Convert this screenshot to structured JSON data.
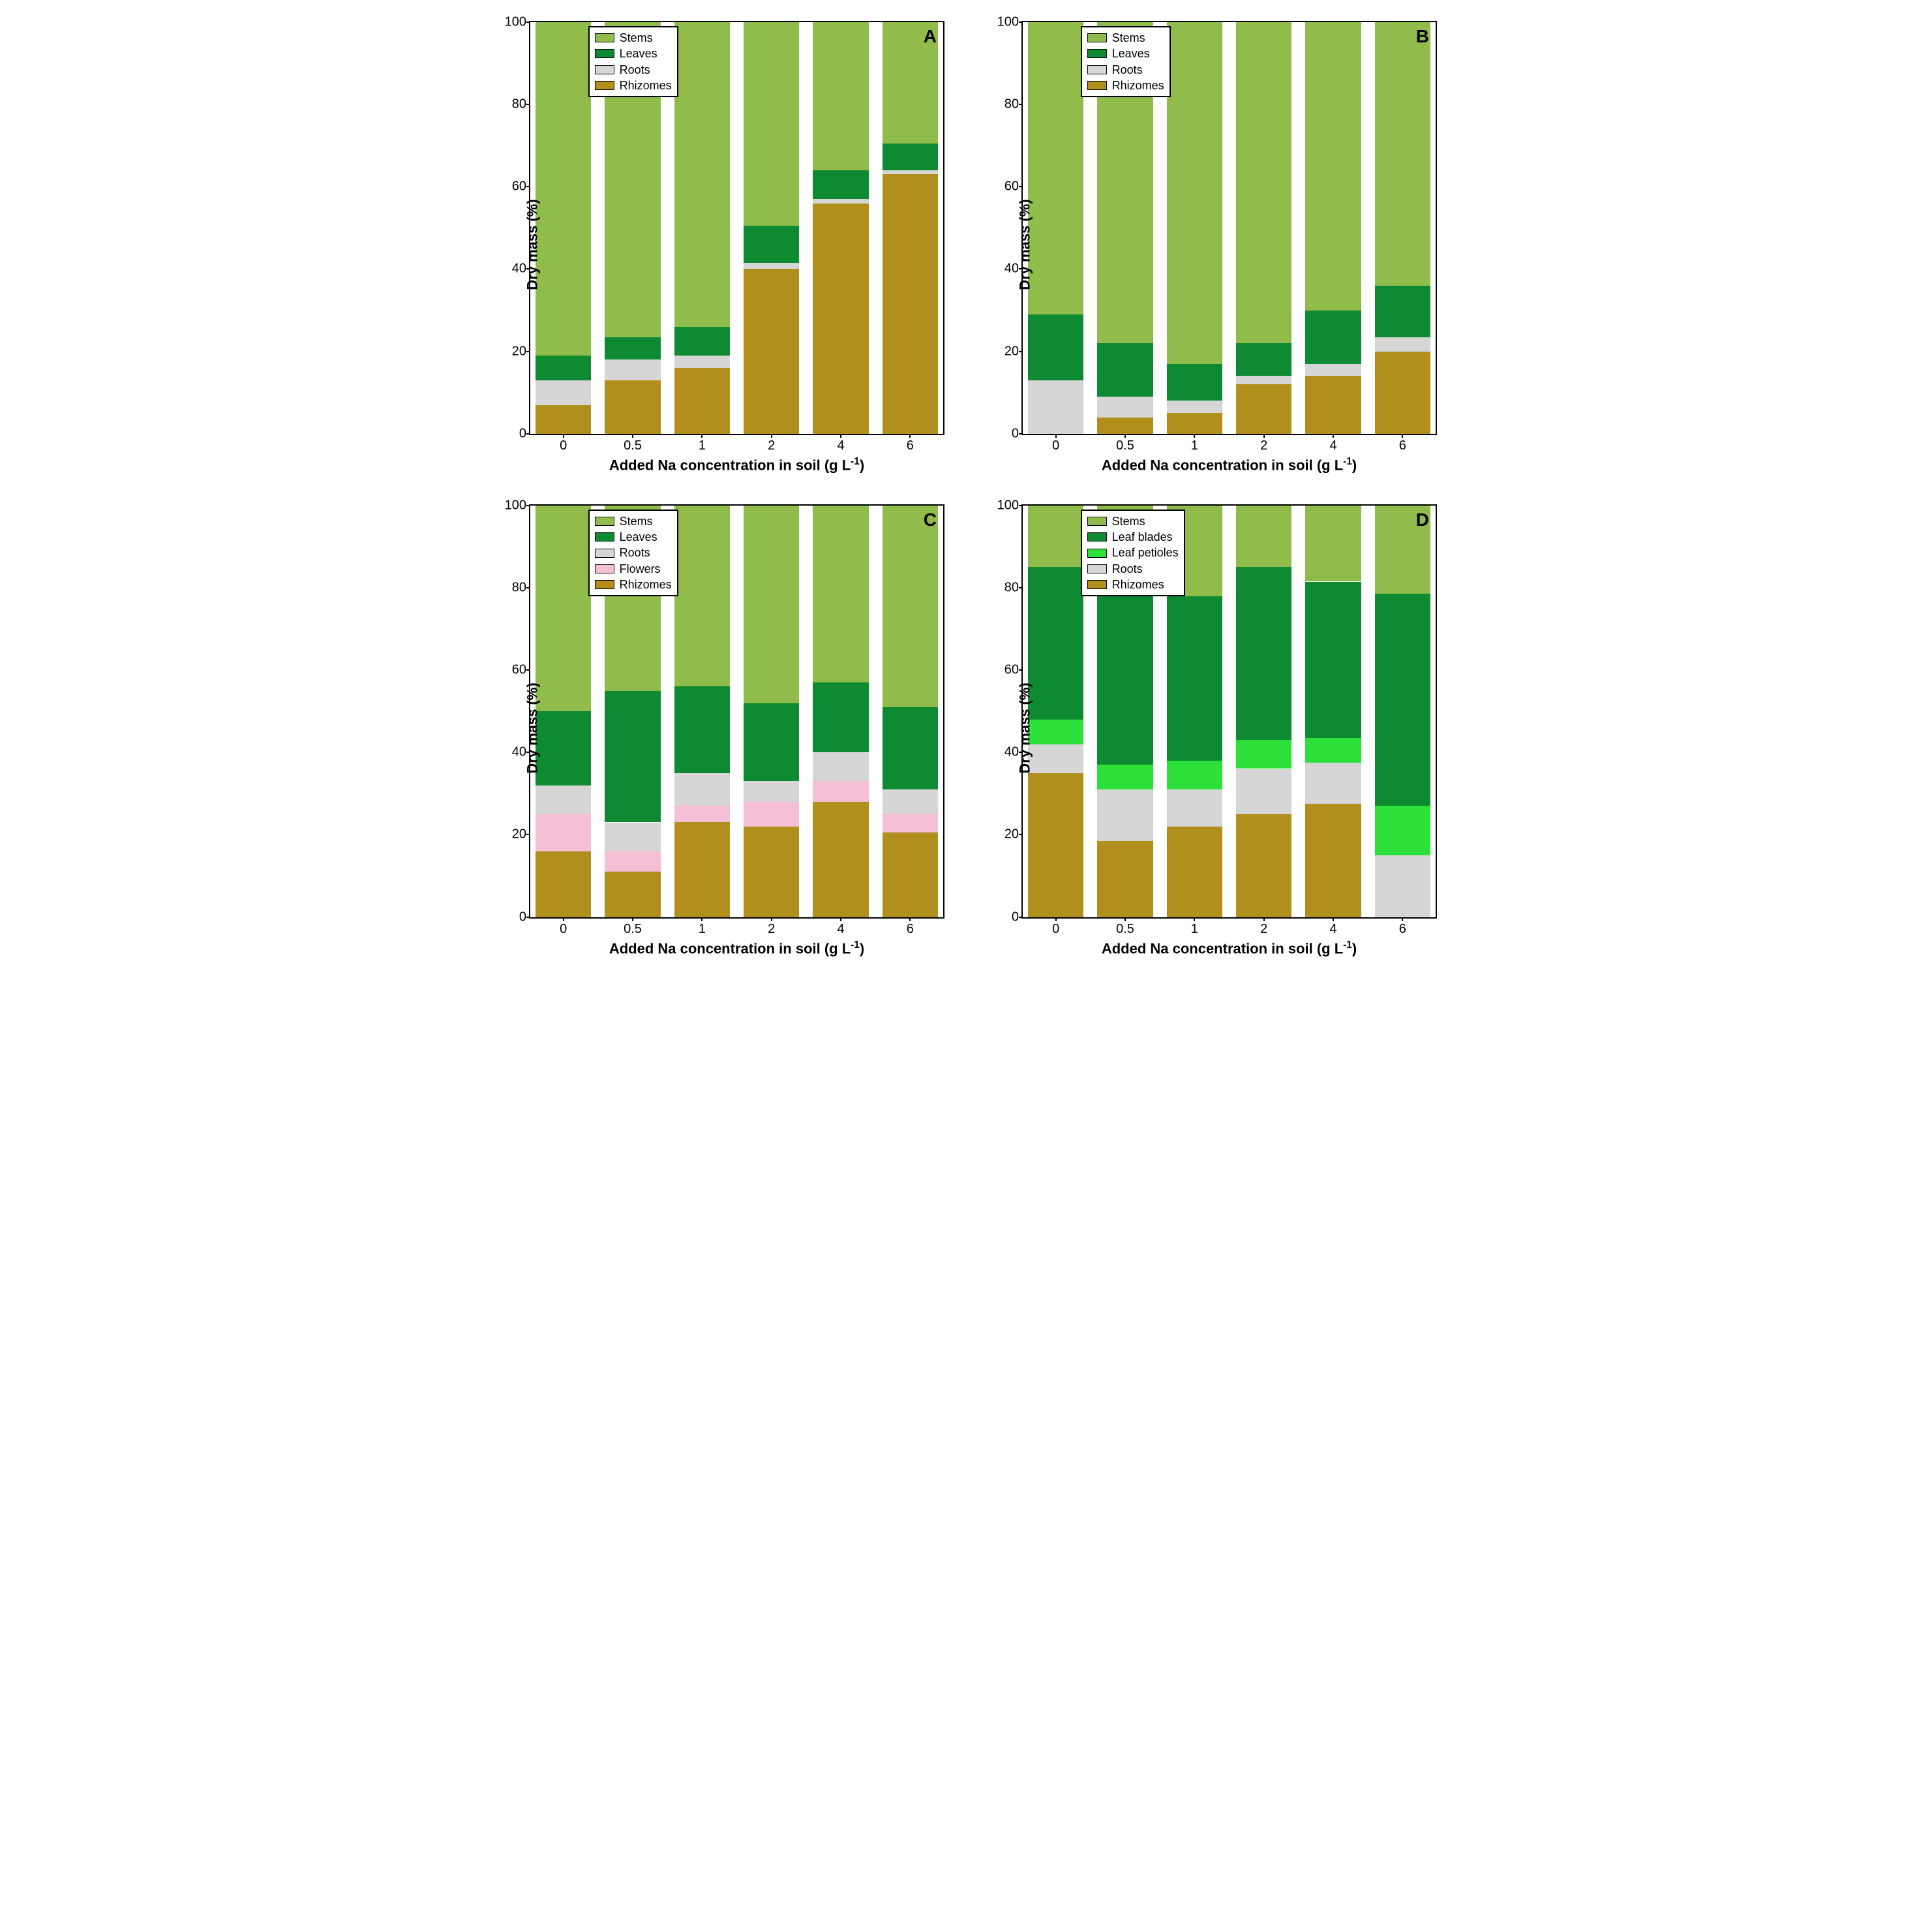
{
  "layout": {
    "rows": 2,
    "cols": 2,
    "background_color": "#ffffff",
    "gap": 30
  },
  "axis": {
    "ylabel": "Dry mass (%)",
    "xlabel_html": "Added Na concentration in soil (g L<sup>-1</sup>)",
    "ylim": [
      0,
      100
    ],
    "yticks": [
      0,
      20,
      40,
      60,
      80,
      100
    ],
    "xcats": [
      "0",
      "0.5",
      "1",
      "2",
      "4",
      "6"
    ],
    "label_fontsize": 22,
    "tick_fontsize": 20,
    "axis_color": "#000000",
    "bar_width_pct": 13.5,
    "bar_gap_pct": 3.3
  },
  "colors": {
    "Stems": "#8fbc4a",
    "Leaves": "#0d8a32",
    "Leaf blades": "#0d8a32",
    "Leaf petioles": "#2de03a",
    "Roots": "#d6d6d6",
    "Flowers": "#f5c0d6",
    "Rhizomes": "#b08f1d"
  },
  "panels": {
    "A": {
      "letter": "A",
      "legend": [
        "Stems",
        "Leaves",
        "Roots",
        "Rhizomes"
      ],
      "data": [
        {
          "Stems": 81,
          "Leaves": 6,
          "Roots": 6,
          "Rhizomes": 7
        },
        {
          "Stems": 76.5,
          "Leaves": 5.5,
          "Roots": 5,
          "Rhizomes": 13
        },
        {
          "Stems": 74,
          "Leaves": 7,
          "Roots": 3,
          "Rhizomes": 16
        },
        {
          "Stems": 49.5,
          "Leaves": 9,
          "Roots": 1.5,
          "Rhizomes": 40
        },
        {
          "Stems": 36,
          "Leaves": 7,
          "Roots": 1,
          "Rhizomes": 56
        },
        {
          "Stems": 29.5,
          "Leaves": 6.5,
          "Roots": 1,
          "Rhizomes": 63
        }
      ]
    },
    "B": {
      "letter": "B",
      "legend": [
        "Stems",
        "Leaves",
        "Roots",
        "Rhizomes"
      ],
      "data": [
        {
          "Stems": 71,
          "Leaves": 16,
          "Roots": 13,
          "Rhizomes": 0
        },
        {
          "Stems": 78,
          "Leaves": 13,
          "Roots": 5,
          "Rhizomes": 4
        },
        {
          "Stems": 83,
          "Leaves": 9,
          "Roots": 3,
          "Rhizomes": 5
        },
        {
          "Stems": 78,
          "Leaves": 8,
          "Roots": 2,
          "Rhizomes": 12
        },
        {
          "Stems": 70,
          "Leaves": 13,
          "Roots": 3,
          "Rhizomes": 14
        },
        {
          "Stems": 64,
          "Leaves": 12.5,
          "Roots": 3.5,
          "Rhizomes": 20
        }
      ]
    },
    "C": {
      "letter": "C",
      "legend": [
        "Stems",
        "Leaves",
        "Roots",
        "Flowers",
        "Rhizomes"
      ],
      "data": [
        {
          "Stems": 50,
          "Leaves": 18,
          "Roots": 7,
          "Flowers": 9,
          "Rhizomes": 16
        },
        {
          "Stems": 45,
          "Leaves": 32,
          "Roots": 7,
          "Flowers": 5,
          "Rhizomes": 11
        },
        {
          "Stems": 44,
          "Leaves": 21,
          "Roots": 8,
          "Flowers": 4,
          "Rhizomes": 23
        },
        {
          "Stems": 48,
          "Leaves": 19,
          "Roots": 5,
          "Flowers": 6,
          "Rhizomes": 22
        },
        {
          "Stems": 43,
          "Leaves": 17,
          "Roots": 7,
          "Flowers": 5,
          "Rhizomes": 28
        },
        {
          "Stems": 49,
          "Leaves": 20,
          "Roots": 6,
          "Flowers": 4.5,
          "Rhizomes": 20.5
        }
      ]
    },
    "D": {
      "letter": "D",
      "legend": [
        "Stems",
        "Leaf blades",
        "Leaf petioles",
        "Roots",
        "Rhizomes"
      ],
      "data": [
        {
          "Stems": 15,
          "Leaf blades": 37,
          "Leaf petioles": 6,
          "Roots": 7,
          "Rhizomes": 35
        },
        {
          "Stems": 21,
          "Leaf blades": 42,
          "Leaf petioles": 6,
          "Roots": 12.5,
          "Rhizomes": 18.5
        },
        {
          "Stems": 22,
          "Leaf blades": 40,
          "Leaf petioles": 7,
          "Roots": 9,
          "Rhizomes": 22
        },
        {
          "Stems": 15,
          "Leaf blades": 42,
          "Leaf petioles": 7,
          "Roots": 11,
          "Rhizomes": 25
        },
        {
          "Stems": 18.5,
          "Leaf blades": 38,
          "Leaf petioles": 6,
          "Roots": 10,
          "Rhizomes": 27.5
        },
        {
          "Stems": 21.5,
          "Leaf blades": 51.5,
          "Leaf petioles": 12,
          "Roots": 15,
          "Rhizomes": 0
        }
      ]
    }
  }
}
